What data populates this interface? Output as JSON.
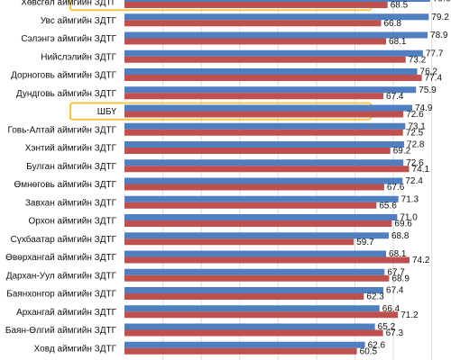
{
  "chart_data": {
    "type": "bar",
    "orientation": "horizontal",
    "categories": [
      "Хөвсгөл аймгийн ЗДТГ",
      "Увс аймгийн ЗДТГ",
      "Сэлэнгэ аймгийн ЗДТГ",
      "Нийслэлийн ЗДТГ",
      "Дорноговь аймгийн ЗДТГ",
      "Дундговь аймгийн ЗДТГ",
      "ШБҮ",
      "Говь-Алтай аймгийн ЗДТГ",
      "Хэнтий аймгийн ЗДТГ",
      "Булган аймгийн ЗДТГ",
      "Өмнөговь аймгийн ЗДТГ",
      "Завхан аймгийн ЗДТГ",
      "Орхон аймгийн ЗДТГ",
      "Сүхбаатар аймгийн ЗДТГ",
      "Өвөрхангай аймгийн ЗДТГ",
      "Дархан-Уул аймгийн ЗДТГ",
      "Баянхонгор аймгийн ЗДТГ",
      "Архангай аймгийн ЗДТГ",
      "Баян-Өлгий аймгийн ЗДТГ",
      "Ховд аймгийн ЗДТГ"
    ],
    "series": [
      {
        "values": [
          79.6,
          79.2,
          78.9,
          77.7,
          76.2,
          75.9,
          74.9,
          73.1,
          72.8,
          72.6,
          72.4,
          71.3,
          71.0,
          68.8,
          68.1,
          67.7,
          67.4,
          66.4,
          65.2,
          62.6
        ]
      },
      {
        "values": [
          68.5,
          66.8,
          68.1,
          73.2,
          77.4,
          67.4,
          72.6,
          72.5,
          69.2,
          74.1,
          67.6,
          65.6,
          69.6,
          59.7,
          74.2,
          68.9,
          62.3,
          71.2,
          67.3,
          60.5
        ]
      }
    ],
    "value_labels": [
      [
        "79.6",
        "79.2",
        "78.9",
        "77.7",
        "76.2",
        "75.9",
        "74.9",
        "73.1",
        "72.8",
        "72.6",
        "72.4",
        "71.3",
        "71.0",
        "68.8",
        "68.1",
        "67.7",
        "67.4",
        "66.4",
        "65.2",
        "62.6"
      ],
      [
        "68.5",
        "66.8",
        "68.1",
        "73.2",
        "77.4",
        "67.4",
        "72.6",
        "72.5",
        "69.2",
        "74.1",
        "67.6",
        "65.6",
        "69.6",
        "59.7",
        "74.2",
        "68.9",
        "62.3",
        "71.2",
        "67.3",
        "60.5"
      ]
    ],
    "highlighted_categories": [
      "Хөвсгөл аймгийн ЗДТГ",
      "ШБҮ"
    ],
    "xlim": [
      0,
      85
    ],
    "grid": "vertical",
    "legend": "none",
    "colors": {
      "series1": "#4f7ec1",
      "series2": "#c0504d",
      "highlight": "#f2c744",
      "grid": "#dddddd"
    }
  }
}
